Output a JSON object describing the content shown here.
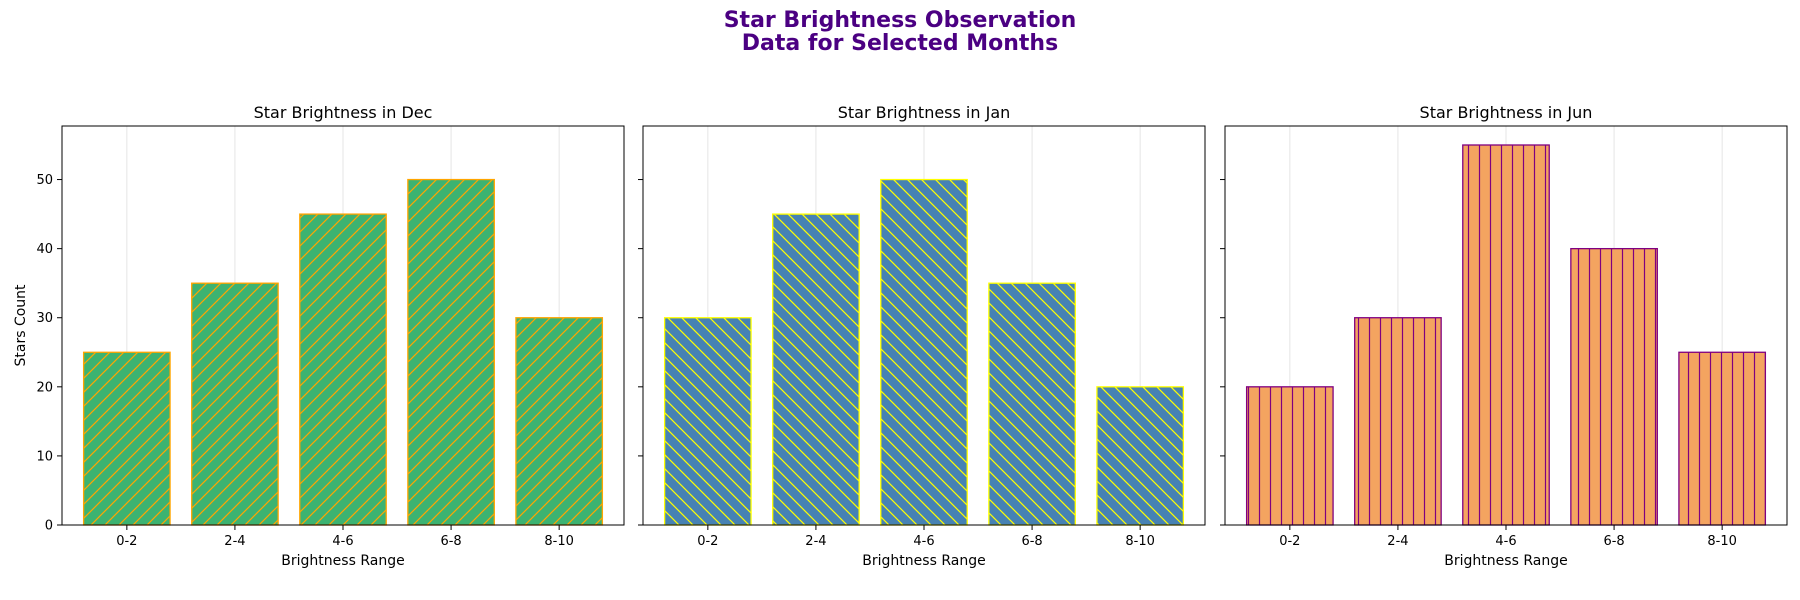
{
  "figure": {
    "title_lines": [
      "Star Brightness Observation",
      "Data for Selected Months"
    ],
    "title_color": "#4B0082"
  },
  "chart_data": [
    {
      "type": "bar",
      "title": "Star Brightness in Dec",
      "xlabel": "Brightness Range",
      "ylabel": "Stars Count",
      "categories": [
        "0-2",
        "2-4",
        "4-6",
        "6-8",
        "8-10"
      ],
      "values": [
        25,
        35,
        45,
        50,
        30
      ],
      "ylim": [
        0,
        57.75
      ],
      "yticks": [
        0,
        10,
        20,
        30,
        40,
        50
      ],
      "grid": "vertical",
      "color": "#3CB371",
      "edge_color": "#FFA500",
      "hatch": "/"
    },
    {
      "type": "bar",
      "title": "Star Brightness in Jan",
      "xlabel": "Brightness Range",
      "ylabel": "",
      "categories": [
        "0-2",
        "2-4",
        "4-6",
        "6-8",
        "8-10"
      ],
      "values": [
        30,
        45,
        50,
        35,
        20
      ],
      "ylim": [
        0,
        57.75
      ],
      "yticks": [
        0,
        10,
        20,
        30,
        40,
        50
      ],
      "grid": "vertical",
      "color": "#4682B4",
      "edge_color": "#FFFF00",
      "hatch": "\\"
    },
    {
      "type": "bar",
      "title": "Star Brightness in Jun",
      "xlabel": "Brightness Range",
      "ylabel": "",
      "categories": [
        "0-2",
        "2-4",
        "4-6",
        "6-8",
        "8-10"
      ],
      "values": [
        20,
        30,
        55,
        40,
        25
      ],
      "ylim": [
        0,
        57.75
      ],
      "yticks": [
        0,
        10,
        20,
        30,
        40,
        50
      ],
      "grid": "vertical",
      "color": "#F4A460",
      "edge_color": "#800080",
      "hatch": "|"
    }
  ]
}
